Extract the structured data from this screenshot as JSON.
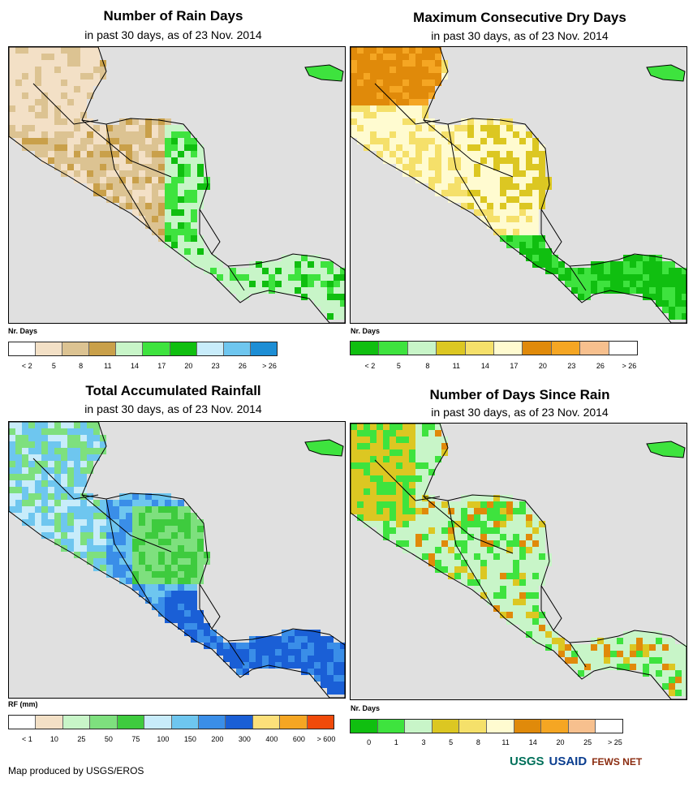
{
  "panels": [
    {
      "title": "Number of Rain Days",
      "subtitle": "in past 30 days, as of 23 Nov. 2014",
      "legend_title": "Nr. Days",
      "colors": [
        "#ffffff",
        "#f3e0c6",
        "#dcc392",
        "#c9a04a",
        "#c8f5c8",
        "#3ee33e",
        "#10bf10",
        "#c8ecfa",
        "#6ec6ef",
        "#1d8ed5"
      ],
      "ticks": [
        "< 2",
        "5",
        "8",
        "11",
        "14",
        "17",
        "20",
        "23",
        "26",
        "> 26"
      ]
    },
    {
      "title": "Maximum Consecutive Dry Days",
      "subtitle": "in past 30 days, as of 23 Nov. 2014",
      "legend_title": "Nr. Days",
      "colors": [
        "#10bf10",
        "#3ee33e",
        "#c8f5c8",
        "#dcc722",
        "#f5e06a",
        "#fffbd0",
        "#e08a0a",
        "#f5a623",
        "#f7c08e",
        "#ffffff"
      ],
      "ticks": [
        "< 2",
        "5",
        "8",
        "11",
        "14",
        "17",
        "20",
        "23",
        "26",
        "> 26"
      ]
    },
    {
      "title": "Total Accumulated Rainfall",
      "subtitle": "in past 30 days, as of 23 Nov. 2014",
      "legend_title": "RF (mm)",
      "colors": [
        "#ffffff",
        "#f3e0c6",
        "#c8f5c8",
        "#7ee07e",
        "#3ecb3e",
        "#c8ecfa",
        "#6ec6ef",
        "#3a8ee8",
        "#1a5fd6",
        "#fce07a",
        "#f5a623",
        "#f04a0a"
      ],
      "ticks": [
        "< 1",
        "10",
        "25",
        "50",
        "75",
        "100",
        "150",
        "200",
        "300",
        "400",
        "600",
        "> 600"
      ]
    },
    {
      "title": "Number of Days Since Rain",
      "subtitle": "in past 30 days, as of 23 Nov. 2014",
      "legend_title": "Nr. Days",
      "colors": [
        "#10bf10",
        "#3ee33e",
        "#c8f5c8",
        "#dcc722",
        "#f5e06a",
        "#fffbd0",
        "#e08a0a",
        "#f5a623",
        "#f7c08e",
        "#ffffff"
      ],
      "ticks": [
        "0",
        "1",
        "3",
        "5",
        "8",
        "11",
        "14",
        "20",
        "25",
        "> 25"
      ]
    }
  ],
  "credit": "Map produced by USGS/EROS",
  "logos": {
    "usgs": "USGS",
    "usaid": "USAID",
    "fews": "FEWS NET"
  },
  "colors": {
    "ocean": "#e0e0e0",
    "border": "#000000"
  }
}
